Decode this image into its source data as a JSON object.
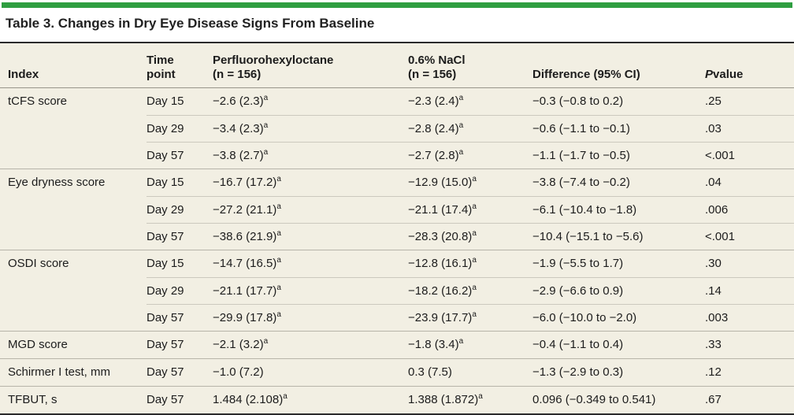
{
  "title": "Table 3. Changes in Dry Eye Disease Signs From Baseline",
  "colors": {
    "accent_green": "#2f9e41",
    "table_background": "#f2efe3",
    "rule_dark": "#2b2b2b",
    "rule_light": "#ccc9be"
  },
  "table": {
    "headers": {
      "index": "Index",
      "time": "Time\npoint",
      "drug": "Perfluorohexyloctane\n(n = 156)",
      "nacl": "0.6% NaCl\n(n = 156)",
      "diff": "Difference (95% CI)",
      "p_italic": "P",
      "p_rest": " value"
    },
    "rows": [
      {
        "index": "tCFS score",
        "time": "Day 15",
        "drug": "−2.6 (2.3)",
        "drug_sup": "a",
        "nacl": "−2.3 (2.4)",
        "nacl_sup": "a",
        "diff": "−0.3 (−0.8 to 0.2)",
        "p": ".25"
      },
      {
        "index": "",
        "time": "Day 29",
        "drug": "−3.4 (2.3)",
        "drug_sup": "a",
        "nacl": "−2.8 (2.4)",
        "nacl_sup": "a",
        "diff": "−0.6 (−1.1 to −0.1)",
        "p": ".03"
      },
      {
        "index": "",
        "time": "Day 57",
        "drug": "−3.8 (2.7)",
        "drug_sup": "a",
        "nacl": "−2.7 (2.8)",
        "nacl_sup": "a",
        "diff": "−1.1 (−1.7 to −0.5)",
        "p": "<.001"
      },
      {
        "index": "Eye dryness score",
        "time": "Day 15",
        "drug": "−16.7 (17.2)",
        "drug_sup": "a",
        "nacl": "−12.9 (15.0)",
        "nacl_sup": "a",
        "diff": "−3.8 (−7.4 to −0.2)",
        "p": ".04"
      },
      {
        "index": "",
        "time": "Day 29",
        "drug": "−27.2 (21.1)",
        "drug_sup": "a",
        "nacl": "−21.1 (17.4)",
        "nacl_sup": "a",
        "diff": "−6.1 (−10.4 to −1.8)",
        "p": ".006"
      },
      {
        "index": "",
        "time": "Day 57",
        "drug": "−38.6 (21.9)",
        "drug_sup": "a",
        "nacl": "−28.3 (20.8)",
        "nacl_sup": "a",
        "diff": "−10.4 (−15.1 to −5.6)",
        "p": "<.001"
      },
      {
        "index": "OSDI score",
        "time": "Day 15",
        "drug": "−14.7 (16.5)",
        "drug_sup": "a",
        "nacl": "−12.8 (16.1)",
        "nacl_sup": "a",
        "diff": "−1.9 (−5.5 to 1.7)",
        "p": ".30"
      },
      {
        "index": "",
        "time": "Day 29",
        "drug": "−21.1 (17.7)",
        "drug_sup": "a",
        "nacl": "−18.2 (16.2)",
        "nacl_sup": "a",
        "diff": "−2.9 (−6.6 to 0.9)",
        "p": ".14"
      },
      {
        "index": "",
        "time": "Day 57",
        "drug": "−29.9 (17.8)",
        "drug_sup": "a",
        "nacl": "−23.9 (17.7)",
        "nacl_sup": "a",
        "diff": "−6.0 (−10.0 to −2.0)",
        "p": ".003"
      },
      {
        "index": "MGD score",
        "time": "Day 57",
        "drug": "−2.1 (3.2)",
        "drug_sup": "a",
        "nacl": "−1.8 (3.4)",
        "nacl_sup": "a",
        "diff": "−0.4 (−1.1 to 0.4)",
        "p": ".33"
      },
      {
        "index": "Schirmer I test, mm",
        "time": "Day 57",
        "drug": "−1.0 (7.2)",
        "drug_sup": "",
        "nacl": "0.3 (7.5)",
        "nacl_sup": "",
        "diff": "−1.3 (−2.9 to 0.3)",
        "p": ".12"
      },
      {
        "index": "TFBUT, s",
        "time": "Day 57",
        "drug": "1.484 (2.108)",
        "drug_sup": "a",
        "nacl": "1.388 (1.872)",
        "nacl_sup": "a",
        "diff": "0.096 (−0.349 to 0.541)",
        "p": ".67"
      }
    ]
  }
}
